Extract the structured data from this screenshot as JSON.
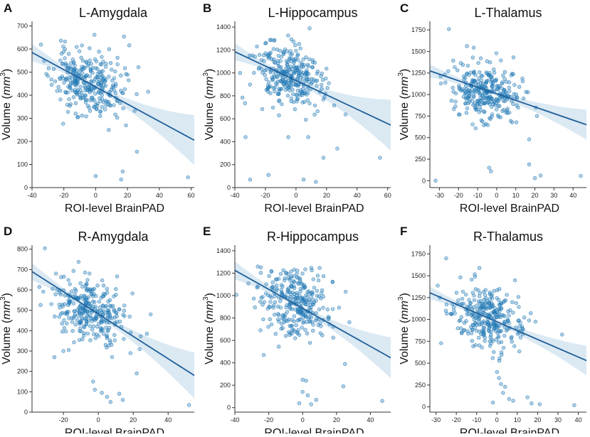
{
  "figure": {
    "xlabel": "ROI-level BrainPAD",
    "ylabel_prefix": "Volume (",
    "ylabel_unit": "mm",
    "ylabel_exp": "3",
    "ylabel_suffix": ")"
  },
  "chart_data": [
    {
      "letter": "A",
      "type": "scatter",
      "title": "L-Amygdala",
      "xlim": [
        -40,
        62
      ],
      "ylim": [
        0,
        720
      ],
      "xticks": [
        -40,
        -20,
        0,
        20,
        40,
        60
      ],
      "yticks": [
        0,
        100,
        200,
        300,
        400,
        500,
        600,
        700
      ],
      "cluster": {
        "cx": -5,
        "sx": 11,
        "cy": 450,
        "sy": 70,
        "n": 300,
        "seed": 11
      },
      "outliers": [
        [
          0,
          50
        ],
        [
          17,
          70
        ],
        [
          16,
          35
        ],
        [
          26,
          155
        ],
        [
          58,
          45
        ],
        [
          33,
          415
        ]
      ],
      "fit": {
        "x0": -40,
        "y0": 585,
        "x1": 62,
        "y1": 205
      },
      "ci": {
        "center": -5,
        "w0": 10,
        "k": 0.022
      }
    },
    {
      "letter": "B",
      "type": "scatter",
      "title": "L-Hippocampus",
      "xlim": [
        -40,
        62
      ],
      "ylim": [
        0,
        1450
      ],
      "xticks": [
        -40,
        -20,
        0,
        20,
        40,
        60
      ],
      "yticks": [
        0,
        200,
        400,
        600,
        800,
        1000,
        1200,
        1400
      ],
      "cluster": {
        "cx": -5,
        "sx": 11,
        "cy": 970,
        "sy": 140,
        "n": 300,
        "seed": 23
      },
      "outliers": [
        [
          -5,
          440
        ],
        [
          -18,
          110
        ],
        [
          -33,
          440
        ],
        [
          -30,
          70
        ],
        [
          5,
          70
        ],
        [
          8,
          440
        ],
        [
          18,
          260
        ],
        [
          27,
          340
        ],
        [
          55,
          260
        ],
        [
          13,
          50
        ]
      ],
      "fit": {
        "x0": -40,
        "y0": 1185,
        "x1": 62,
        "y1": 545
      },
      "ci": {
        "center": -5,
        "w0": 20,
        "k": 0.045
      }
    },
    {
      "letter": "C",
      "type": "scatter",
      "title": "L-Thalamus",
      "xlim": [
        -35,
        47
      ],
      "ylim": [
        -80,
        1850
      ],
      "xticks": [
        -30,
        -20,
        -10,
        0,
        10,
        20,
        30,
        40
      ],
      "yticks": [
        0,
        250,
        500,
        750,
        1000,
        1250,
        1500,
        1750
      ],
      "cluster": {
        "cx": -5,
        "sx": 9,
        "cy": 1030,
        "sy": 160,
        "n": 300,
        "seed": 37
      },
      "outliers": [
        [
          -25,
          1760
        ],
        [
          -32,
          0
        ],
        [
          -4,
          150
        ],
        [
          -3,
          110
        ],
        [
          17,
          480
        ],
        [
          17,
          190
        ],
        [
          20,
          30
        ],
        [
          23,
          60
        ],
        [
          44,
          55
        ]
      ],
      "fit": {
        "x0": -35,
        "y0": 1275,
        "x1": 47,
        "y1": 650
      },
      "ci": {
        "center": -5,
        "w0": 25,
        "k": 0.055
      }
    },
    {
      "letter": "D",
      "type": "scatter",
      "title": "R-Amygdala",
      "xlim": [
        -38,
        55
      ],
      "ylim": [
        0,
        820
      ],
      "xticks": [
        -20,
        0,
        20,
        40
      ],
      "yticks": [
        0,
        100,
        200,
        300,
        400,
        500,
        600,
        700,
        800
      ],
      "cluster": {
        "cx": -5,
        "sx": 10,
        "cy": 505,
        "sy": 85,
        "n": 300,
        "seed": 41
      },
      "outliers": [
        [
          -20,
          300
        ],
        [
          -17,
          305
        ],
        [
          -3,
          150
        ],
        [
          -2,
          110
        ],
        [
          2,
          95
        ],
        [
          5,
          75
        ],
        [
          7,
          50
        ],
        [
          12,
          90
        ],
        [
          14,
          60
        ],
        [
          22,
          190
        ],
        [
          30,
          480
        ],
        [
          52,
          35
        ]
      ],
      "fit": {
        "x0": -38,
        "y0": 690,
        "x1": 55,
        "y1": 180
      },
      "ci": {
        "center": -5,
        "w0": 12,
        "k": 0.028
      }
    },
    {
      "letter": "E",
      "type": "scatter",
      "title": "R-Hippocampus",
      "xlim": [
        -40,
        52
      ],
      "ylim": [
        -40,
        1450
      ],
      "xticks": [
        -40,
        -20,
        0,
        20,
        40
      ],
      "yticks": [
        0,
        200,
        400,
        600,
        800,
        1000,
        1200,
        1400
      ],
      "cluster": {
        "cx": -5,
        "sx": 10,
        "cy": 940,
        "sy": 150,
        "n": 300,
        "seed": 53
      },
      "outliers": [
        [
          -23,
          470
        ],
        [
          0,
          250
        ],
        [
          2,
          240
        ],
        [
          0,
          140
        ],
        [
          3,
          110
        ],
        [
          5,
          30
        ],
        [
          8,
          70
        ],
        [
          -2,
          40
        ],
        [
          25,
          390
        ],
        [
          24,
          190
        ],
        [
          47,
          60
        ]
      ],
      "fit": {
        "x0": -40,
        "y0": 1225,
        "x1": 52,
        "y1": 445
      },
      "ci": {
        "center": -5,
        "w0": 20,
        "k": 0.05
      }
    },
    {
      "letter": "F",
      "type": "scatter",
      "title": "R-Thalamus",
      "xlim": [
        -33,
        44
      ],
      "ylim": [
        -60,
        1850
      ],
      "xticks": [
        -30,
        -20,
        -10,
        0,
        10,
        20,
        30,
        40
      ],
      "yticks": [
        0,
        250,
        500,
        750,
        1000,
        1250,
        1500,
        1750
      ],
      "cluster": {
        "cx": -5,
        "sx": 9,
        "cy": 1030,
        "sy": 170,
        "n": 300,
        "seed": 67
      },
      "outliers": [
        [
          -25,
          1700
        ],
        [
          0,
          400
        ],
        [
          1,
          330
        ],
        [
          2,
          260
        ],
        [
          4,
          230
        ],
        [
          3,
          160
        ],
        [
          6,
          90
        ],
        [
          8,
          70
        ],
        [
          15,
          110
        ],
        [
          17,
          40
        ],
        [
          21,
          30
        ],
        [
          -2,
          50
        ],
        [
          38,
          20
        ]
      ],
      "fit": {
        "x0": -33,
        "y0": 1305,
        "x1": 44,
        "y1": 530
      },
      "ci": {
        "center": -5,
        "w0": 25,
        "k": 0.06
      }
    }
  ]
}
